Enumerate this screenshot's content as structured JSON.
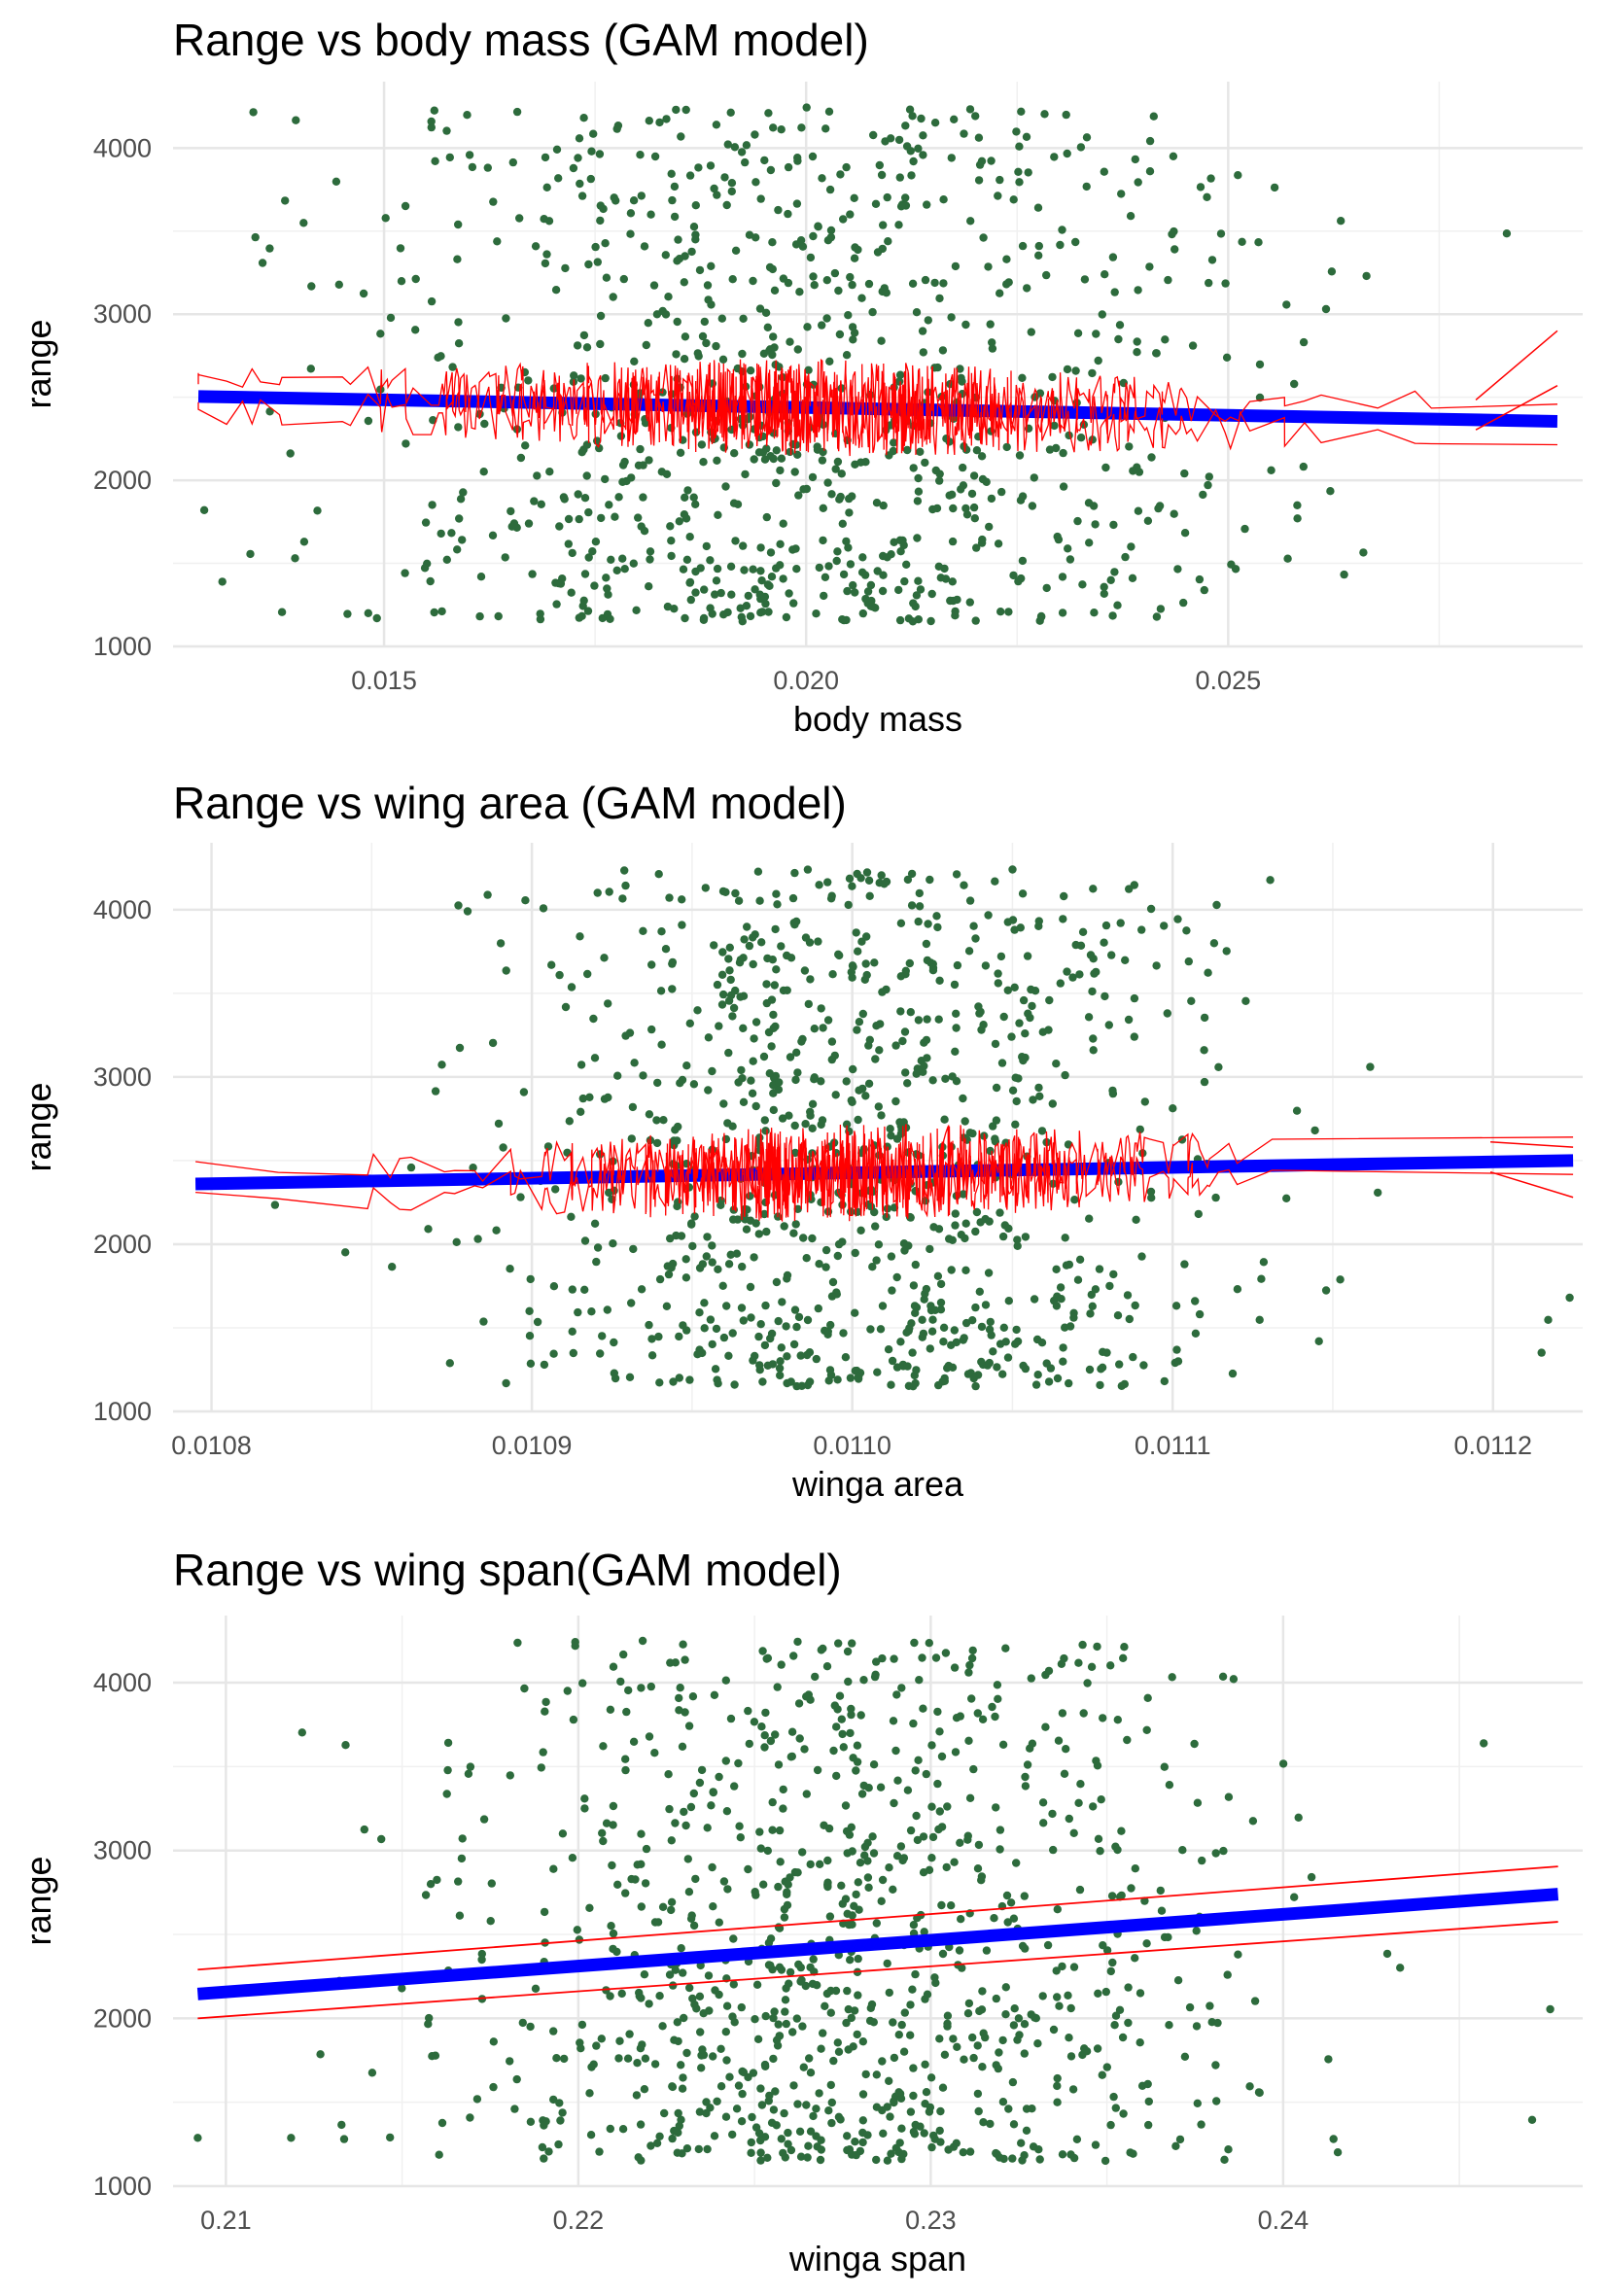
{
  "chart_data": [
    {
      "type": "scatter",
      "title": "Range vs body mass (GAM model)",
      "xlabel": "body mass",
      "ylabel": "range",
      "xlim": [
        0.0125,
        0.0292
      ],
      "ylim": [
        1000,
        4400
      ],
      "xticks": [
        0.015,
        0.02,
        0.025
      ],
      "xtick_labels": [
        "0.015",
        "0.020",
        "0.025"
      ],
      "yticks": [
        1000,
        2000,
        3000,
        4000
      ],
      "ytick_labels": [
        "1000",
        "2000",
        "3000",
        "4000"
      ],
      "grid": true,
      "points": {
        "n": 950,
        "x_center": 0.02,
        "x_sd": 0.0026,
        "x_min": 0.0128,
        "x_max": 0.0289,
        "y_min": 1150,
        "y_max": 4250,
        "color": "#2d6b3c"
      },
      "fit_line": {
        "x": [
          0.0128,
          0.0289
        ],
        "y": [
          2505,
          2355
        ],
        "color": "#0000ff"
      },
      "confidence_band": {
        "color": "#ff0000",
        "jagged": true,
        "amplitude": 250,
        "x_start": 0.0128,
        "x_end": 0.0289,
        "outer_upper_end": 2900,
        "outer_lower_end": 2570
      }
    },
    {
      "type": "scatter",
      "title": "Range vs wing area (GAM model)",
      "xlabel": "winga area",
      "ylabel": "range",
      "xlim": [
        0.010788,
        0.011228
      ],
      "ylim": [
        1000,
        4400
      ],
      "xticks": [
        0.0108,
        0.0109,
        0.011,
        0.0111,
        0.0112
      ],
      "xtick_labels": [
        "0.0108",
        "0.0109",
        "0.0110",
        "0.0111",
        "0.0112"
      ],
      "yticks": [
        1000,
        2000,
        3000,
        4000
      ],
      "ytick_labels": [
        "1000",
        "2000",
        "3000",
        "4000"
      ],
      "grid": true,
      "points": {
        "n": 950,
        "x_center": 0.011,
        "x_sd": 5.6e-05,
        "x_min": 0.010795,
        "x_max": 0.011225,
        "y_min": 1150,
        "y_max": 4250,
        "color": "#2d6b3c"
      },
      "fit_line": {
        "x": [
          0.010795,
          0.011225
        ],
        "y": [
          2360,
          2500
        ],
        "color": "#0000ff"
      },
      "confidence_band": {
        "color": "#ff0000",
        "jagged": true,
        "amplitude": 250,
        "x_start": 0.010795,
        "x_end": 0.011225,
        "outer_upper_end": 2580,
        "outer_lower_end": 2280
      }
    },
    {
      "type": "scatter",
      "title": "Range vs wing span(GAM model)",
      "xlabel": "winga span",
      "ylabel": "range",
      "xlim": [
        0.2085,
        0.2485
      ],
      "ylim": [
        1000,
        4400
      ],
      "xticks": [
        0.21,
        0.22,
        0.23,
        0.24
      ],
      "xtick_labels": [
        "0.21",
        "0.22",
        "0.23",
        "0.24"
      ],
      "yticks": [
        1000,
        2000,
        3000,
        4000
      ],
      "ytick_labels": [
        "1000",
        "2000",
        "3000",
        "4000"
      ],
      "grid": true,
      "points": {
        "n": 950,
        "x_center": 0.2275,
        "x_sd": 0.0055,
        "x_min": 0.2092,
        "x_max": 0.2478,
        "y_min": 1150,
        "y_max": 4250,
        "color": "#2d6b3c"
      },
      "fit_line": {
        "x": [
          0.2092,
          0.2478
        ],
        "y": [
          2145,
          2740
        ],
        "color": "#0000ff"
      },
      "confidence_band": {
        "color": "#ff0000",
        "jagged": false,
        "upper": [
          2290,
          2905
        ],
        "lower": [
          2000,
          2575
        ]
      }
    }
  ]
}
